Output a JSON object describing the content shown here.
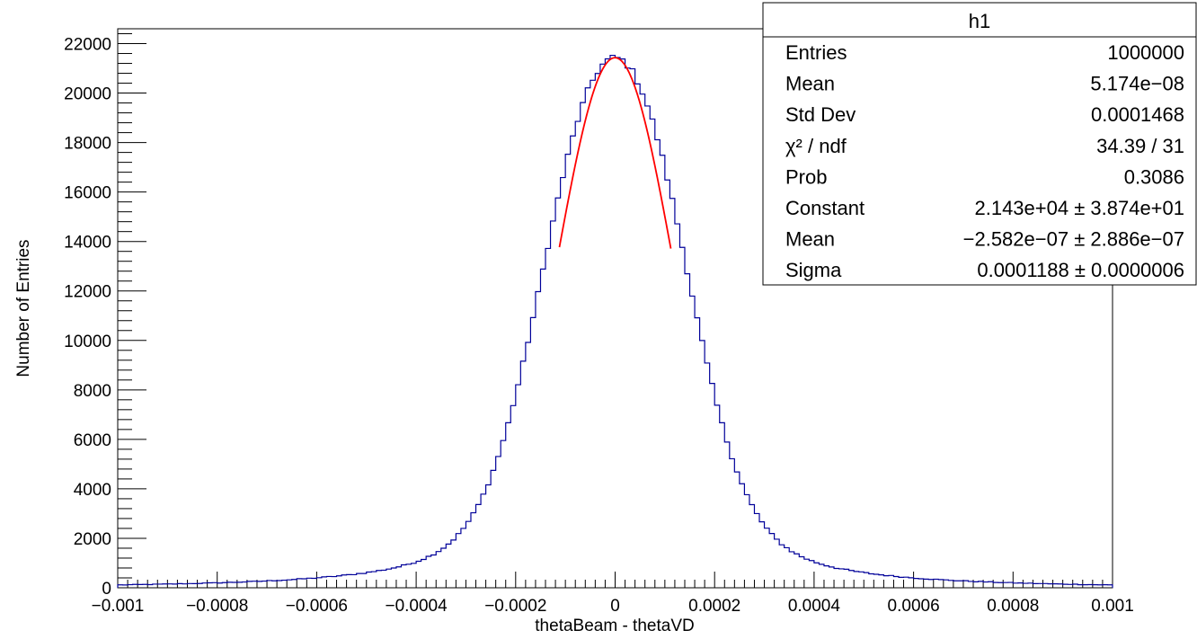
{
  "chart_data": {
    "type": "histogram",
    "xlabel": "thetaBeam - thetaVD",
    "ylabel": "Number of Entries",
    "xlim": [
      -0.001,
      0.001
    ],
    "ylim": [
      0,
      22600
    ],
    "x_tick_labels": [
      "−0.001",
      "−0.0008",
      "−0.0006",
      "−0.0004",
      "−0.0002",
      "0",
      "0.0002",
      "0.0004",
      "0.0006",
      "0.0008",
      "0.001"
    ],
    "x_ticks": [
      -0.001,
      -0.0008,
      -0.0006,
      -0.0004,
      -0.0002,
      0,
      0.0002,
      0.0004,
      0.0006,
      0.0008,
      0.001
    ],
    "y_ticks": [
      0,
      2000,
      4000,
      6000,
      8000,
      10000,
      12000,
      14000,
      16000,
      18000,
      20000,
      22000
    ],
    "y_tick_labels": [
      "0",
      "2000",
      "4000",
      "6000",
      "8000",
      "10000",
      "12000",
      "14000",
      "16000",
      "18000",
      "20000",
      "22000"
    ],
    "bins": 200,
    "histogram_color": "#000099",
    "fit_color": "#ff0000",
    "fit": {
      "function": "gaus",
      "constant": 21430,
      "mean": -2.582e-07,
      "sigma": 0.0001188,
      "range": [
        -0.000112,
        0.000112
      ]
    },
    "stats_box": {
      "title": "h1",
      "rows": [
        {
          "label": "Entries",
          "value": "1000000"
        },
        {
          "label": "Mean",
          "value": "5.174e−08"
        },
        {
          "label": "Std Dev",
          "value": "0.0001468"
        },
        {
          "label": "χ² / ndf",
          "value": "34.39 / 31"
        },
        {
          "label": "Prob",
          "value": "0.3086"
        },
        {
          "label": "Constant",
          "value": "2.143e+04 ± 3.874e+01"
        },
        {
          "label": "Mean",
          "value": "−2.582e−07 ± 2.886e−07"
        },
        {
          "label": "Sigma",
          "value": "0.0001188 ± 0.0000006"
        }
      ]
    }
  }
}
